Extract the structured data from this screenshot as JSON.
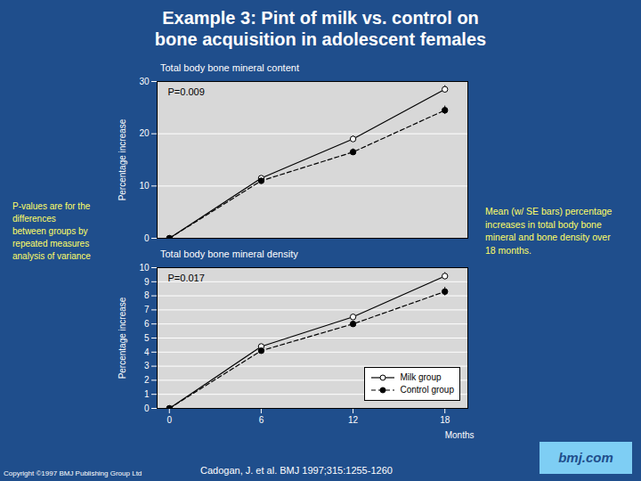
{
  "title": "Example 3: Pint of milk vs. control on\nbone acquisition in adolescent females",
  "annotations": [
    "P-values are for the\ndifferences\nbetween groups by\nrepeated measures\nanalysis of variance",
    "Mean (w/ SE bars) percentage\nincreases in total body bone\nmineral and bone density over\n18 months.",
    "Copyright ©1997 BMJ Publishing Group Ltd",
    "Cadogan, J. et al. BMJ 1997;315:1255-1260",
    "bmj.com"
  ],
  "chart_data": [
    {
      "type": "line",
      "title": "Total body bone mineral content",
      "ylabel": "Percentage increase",
      "annotations": [
        "P=0.009"
      ],
      "x": [
        0,
        6,
        12,
        18
      ],
      "series": [
        {
          "values": [
            0,
            11.5,
            19.0,
            28.5
          ],
          "errors": [
            0.0,
            0.4,
            0.6,
            0.7
          ],
          "color": "black",
          "marker": "open_circle",
          "line_style": "solid"
        },
        {
          "values": [
            0,
            11.0,
            16.5,
            24.5
          ],
          "errors": [
            0.0,
            0.4,
            0.6,
            0.8
          ],
          "color": "black",
          "marker": "circle",
          "line_style": "dashed"
        }
      ],
      "xlim": [
        -0.8,
        19.5
      ],
      "ylim": [
        0,
        30
      ],
      "yticks": [
        0,
        10,
        20,
        30
      ],
      "grid": true,
      "tick_labels": "y"
    },
    {
      "type": "line",
      "title": "Total body bone mineral density",
      "ylabel": "Percentage increase",
      "xlabel": "Months",
      "annotations": [
        "P=0.017"
      ],
      "x": [
        0,
        6,
        12,
        18
      ],
      "series": [
        {
          "name": "Milk group",
          "values": [
            0,
            4.4,
            6.5,
            9.4
          ],
          "errors": [
            0.0,
            0.15,
            0.2,
            0.25
          ],
          "color": "black",
          "marker": "open_circle",
          "line_style": "solid"
        },
        {
          "name": "Control group",
          "values": [
            0,
            4.1,
            6.0,
            8.3
          ],
          "errors": [
            0.0,
            0.15,
            0.2,
            0.3
          ],
          "color": "black",
          "marker": "circle",
          "line_style": "dashed"
        }
      ],
      "xlim": [
        -0.8,
        19.5
      ],
      "xticks": [
        0,
        6,
        12,
        18
      ],
      "ylim": [
        0,
        10
      ],
      "yticks": [
        0,
        1,
        2,
        3,
        4,
        5,
        6,
        7,
        8,
        9,
        10
      ],
      "grid": true,
      "legend": "lower right"
    }
  ]
}
